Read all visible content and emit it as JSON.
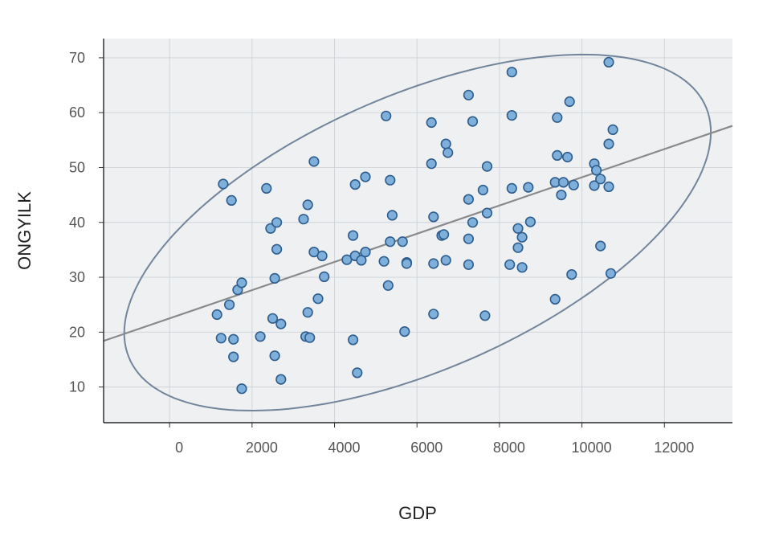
{
  "chart_data": {
    "type": "scatter",
    "xlabel": "GDP",
    "ylabel": "ONGYILK",
    "xlim": [
      -1600,
      13650
    ],
    "ylim": [
      3.5,
      73.5
    ],
    "x_ticks": [
      0,
      2000,
      4000,
      6000,
      8000,
      10000,
      12000
    ],
    "y_ticks": [
      10,
      20,
      30,
      40,
      50,
      60,
      70
    ],
    "grid": true,
    "regression_line": {
      "x": [
        -1600,
        13650
      ],
      "y": [
        18.4,
        57.6
      ]
    },
    "confidence_ellipse": {
      "center": [
        6000,
        38.2
      ],
      "note": "data ellipse"
    },
    "colors": {
      "panel": "#eef0f2",
      "grid": "#cfd3d7",
      "point_fill": "#7fb0dc",
      "point_stroke": "#2f5d8c",
      "line": "#8a8a8a",
      "ellipse": "#73859a"
    },
    "points": [
      [
        1300,
        47.0
      ],
      [
        1500,
        44.0
      ],
      [
        1150,
        23.2
      ],
      [
        1250,
        18.9
      ],
      [
        1450,
        25.0
      ],
      [
        1550,
        18.7
      ],
      [
        1550,
        15.5
      ],
      [
        1650,
        27.7
      ],
      [
        1750,
        29.0
      ],
      [
        1750,
        9.7
      ],
      [
        2200,
        19.2
      ],
      [
        2350,
        46.2
      ],
      [
        2450,
        38.9
      ],
      [
        2550,
        29.8
      ],
      [
        2500,
        22.5
      ],
      [
        2550,
        15.7
      ],
      [
        2600,
        40.0
      ],
      [
        2600,
        35.1
      ],
      [
        2700,
        21.5
      ],
      [
        2700,
        11.4
      ],
      [
        3250,
        40.6
      ],
      [
        3350,
        43.2
      ],
      [
        3350,
        23.6
      ],
      [
        3300,
        19.2
      ],
      [
        3400,
        19.0
      ],
      [
        3500,
        51.1
      ],
      [
        3500,
        34.6
      ],
      [
        3600,
        26.1
      ],
      [
        3700,
        33.9
      ],
      [
        3750,
        30.1
      ],
      [
        4300,
        33.2
      ],
      [
        4450,
        37.6
      ],
      [
        4500,
        46.9
      ],
      [
        4500,
        33.9
      ],
      [
        4450,
        18.6
      ],
      [
        4550,
        12.6
      ],
      [
        4650,
        33.1
      ],
      [
        4750,
        48.3
      ],
      [
        4750,
        34.6
      ],
      [
        5250,
        59.4
      ],
      [
        5200,
        32.9
      ],
      [
        5350,
        47.7
      ],
      [
        5350,
        36.5
      ],
      [
        5300,
        28.5
      ],
      [
        5400,
        41.3
      ],
      [
        5650,
        36.5
      ],
      [
        5750,
        32.7
      ],
      [
        5750,
        32.5
      ],
      [
        5700,
        20.1
      ],
      [
        6350,
        58.2
      ],
      [
        6350,
        50.7
      ],
      [
        6400,
        41.0
      ],
      [
        6400,
        32.5
      ],
      [
        6400,
        23.3
      ],
      [
        6600,
        37.6
      ],
      [
        6650,
        37.8
      ],
      [
        6700,
        54.3
      ],
      [
        6700,
        33.1
      ],
      [
        6750,
        52.7
      ],
      [
        7250,
        63.2
      ],
      [
        7350,
        58.4
      ],
      [
        7250,
        44.2
      ],
      [
        7250,
        37.0
      ],
      [
        7250,
        32.3
      ],
      [
        7350,
        40.0
      ],
      [
        7600,
        45.9
      ],
      [
        7700,
        50.2
      ],
      [
        7700,
        41.7
      ],
      [
        7650,
        23.0
      ],
      [
        8300,
        67.4
      ],
      [
        8300,
        59.5
      ],
      [
        8300,
        46.2
      ],
      [
        8250,
        32.3
      ],
      [
        8450,
        38.9
      ],
      [
        8450,
        35.4
      ],
      [
        8550,
        37.3
      ],
      [
        8550,
        31.8
      ],
      [
        8700,
        46.4
      ],
      [
        8750,
        40.1
      ],
      [
        9400,
        59.1
      ],
      [
        9400,
        52.2
      ],
      [
        9350,
        47.3
      ],
      [
        9350,
        26.0
      ],
      [
        9550,
        47.3
      ],
      [
        9500,
        45.0
      ],
      [
        9650,
        51.9
      ],
      [
        9700,
        62.0
      ],
      [
        9800,
        46.8
      ],
      [
        9750,
        30.5
      ],
      [
        10300,
        50.7
      ],
      [
        10350,
        49.5
      ],
      [
        10300,
        46.7
      ],
      [
        10450,
        47.9
      ],
      [
        10450,
        35.7
      ],
      [
        10650,
        69.2
      ],
      [
        10650,
        54.3
      ],
      [
        10650,
        46.5
      ],
      [
        10750,
        56.9
      ],
      [
        10700,
        30.7
      ]
    ]
  }
}
